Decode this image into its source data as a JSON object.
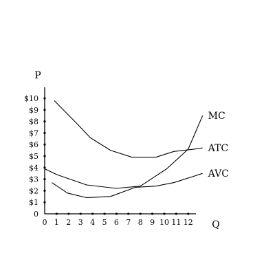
{
  "chart_data": {
    "type": "line",
    "title": "",
    "xlabel": "Q",
    "ylabel": "P",
    "xlim": [
      0,
      13.5
    ],
    "ylim": [
      0,
      10.5
    ],
    "x_ticks": [
      "0",
      "1",
      "2",
      "3",
      "4",
      "5",
      "6",
      "7",
      "8",
      "9",
      "10",
      "11",
      "12"
    ],
    "y_ticks": [
      "0",
      "$1",
      "$2",
      "$3",
      "$4",
      "$5",
      "$6",
      "$7",
      "$8",
      "$9",
      "$10"
    ],
    "x_tick_values": [
      0,
      1,
      2,
      3,
      4,
      5,
      6,
      7,
      8,
      9,
      10,
      11,
      12
    ],
    "y_tick_values": [
      0,
      1,
      2,
      3,
      4,
      5,
      6,
      7,
      8,
      9,
      10
    ],
    "x_dot_values": [
      1,
      2,
      3,
      4,
      5,
      6,
      7,
      8,
      9,
      10,
      11,
      12
    ],
    "y_dot_values": [
      1,
      2,
      3,
      4,
      5,
      6,
      7,
      8,
      9,
      10
    ],
    "grid": false,
    "legend": "none",
    "series": [
      {
        "name": "MC",
        "x": [
          0,
          1,
          3.5,
          6,
          8,
          10.2,
          12,
          13.2
        ],
        "y": [
          3.9,
          3.4,
          2.5,
          2.2,
          2.4,
          3.9,
          5.6,
          8.5
        ]
      },
      {
        "name": "ATC",
        "x": [
          0.8,
          2.8,
          3.8,
          5.5,
          7.3,
          9.3,
          10.8,
          12.5,
          13.2
        ],
        "y": [
          9.8,
          7.7,
          6.6,
          5.5,
          4.9,
          4.9,
          5.4,
          5.6,
          5.7
        ]
      },
      {
        "name": "AVC",
        "x": [
          0.6,
          1.9,
          3.5,
          5.5,
          7.6,
          9.3,
          10.8,
          12.6,
          13.2
        ],
        "y": [
          2.7,
          1.8,
          1.4,
          1.5,
          2.3,
          2.4,
          2.7,
          3.3,
          3.5
        ]
      }
    ],
    "colors": {
      "line": "#000000",
      "axis": "#000000"
    }
  }
}
